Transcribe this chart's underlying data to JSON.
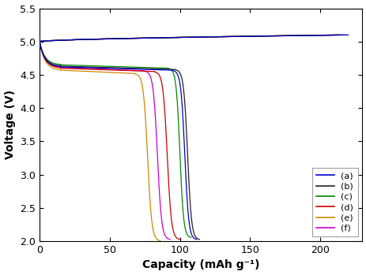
{
  "title": "",
  "xlabel": "Capacity (mAh g⁻¹)",
  "ylabel": "Voltage (V)",
  "xlim": [
    0,
    230
  ],
  "ylim": [
    2.0,
    5.5
  ],
  "xticks": [
    0,
    50,
    100,
    150,
    200
  ],
  "yticks": [
    2.0,
    2.5,
    3.0,
    3.5,
    4.0,
    4.5,
    5.0,
    5.5
  ],
  "legend_labels": [
    "(a)",
    "(b)",
    "(c)",
    "(d)",
    "(e)",
    "(f)"
  ],
  "colors": [
    "#0000cc",
    "#222222",
    "#008800",
    "#cc0000",
    "#cc8800",
    "#cc00cc"
  ],
  "background_color": "#ffffff",
  "figsize": [
    4.64,
    3.49
  ],
  "dpi": 100,
  "discharge_params": [
    {
      "plateau_v": 4.62,
      "plateau_end": 95,
      "end_cap": 112,
      "end_v": 2.02
    },
    {
      "plateau_v": 4.63,
      "plateau_end": 97,
      "end_cap": 114,
      "end_v": 2.02
    },
    {
      "plateau_v": 4.65,
      "plateau_end": 92,
      "end_cap": 108,
      "end_v": 2.05
    },
    {
      "plateau_v": 4.6,
      "plateau_end": 82,
      "end_cap": 100,
      "end_v": 2.02
    },
    {
      "plateau_v": 4.57,
      "plateau_end": 68,
      "end_cap": 86,
      "end_v": 2.0
    },
    {
      "plateau_v": 4.61,
      "plateau_end": 75,
      "end_cap": 93,
      "end_v": 2.02
    }
  ],
  "charge_params": [
    {
      "end_cap": 220,
      "end_v": 5.1
    },
    {
      "end_cap": 218,
      "end_v": 5.1
    },
    {
      "end_cap": 215,
      "end_v": 5.1
    },
    {
      "end_cap": 213,
      "end_v": 5.1
    },
    {
      "end_cap": 212,
      "end_v": 5.1
    },
    {
      "end_cap": 216,
      "end_v": 5.1
    }
  ]
}
